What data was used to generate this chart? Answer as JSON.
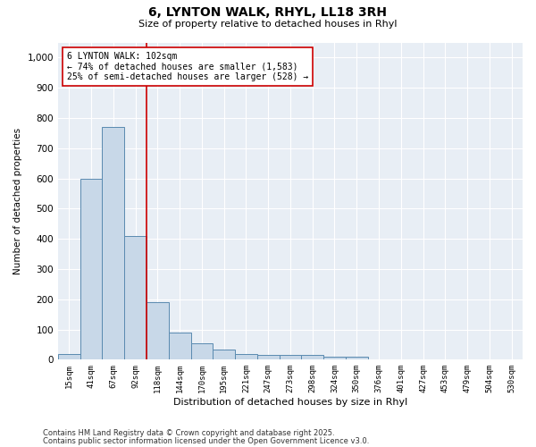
{
  "title1": "6, LYNTON WALK, RHYL, LL18 3RH",
  "title2": "Size of property relative to detached houses in Rhyl",
  "xlabel": "Distribution of detached houses by size in Rhyl",
  "ylabel": "Number of detached properties",
  "categories": [
    "15sqm",
    "41sqm",
    "67sqm",
    "92sqm",
    "118sqm",
    "144sqm",
    "170sqm",
    "195sqm",
    "221sqm",
    "247sqm",
    "273sqm",
    "298sqm",
    "324sqm",
    "350sqm",
    "376sqm",
    "401sqm",
    "427sqm",
    "453sqm",
    "479sqm",
    "504sqm",
    "530sqm"
  ],
  "values": [
    20,
    600,
    770,
    410,
    190,
    90,
    55,
    35,
    20,
    15,
    15,
    15,
    10,
    10,
    0,
    0,
    0,
    0,
    0,
    0,
    0
  ],
  "bar_color": "#c8d8e8",
  "bar_edge_color": "#5a8ab0",
  "vline_color": "#cc0000",
  "vline_pos": 3.5,
  "annotation_text": "6 LYNTON WALK: 102sqm\n← 74% of detached houses are smaller (1,583)\n25% of semi-detached houses are larger (528) →",
  "annotation_box_color": "#ffffff",
  "annotation_box_edge": "#cc0000",
  "ylim": [
    0,
    1050
  ],
  "yticks": [
    0,
    100,
    200,
    300,
    400,
    500,
    600,
    700,
    800,
    900,
    1000
  ],
  "background_color": "#e8eef5",
  "footer1": "Contains HM Land Registry data © Crown copyright and database right 2025.",
  "footer2": "Contains public sector information licensed under the Open Government Licence v3.0."
}
